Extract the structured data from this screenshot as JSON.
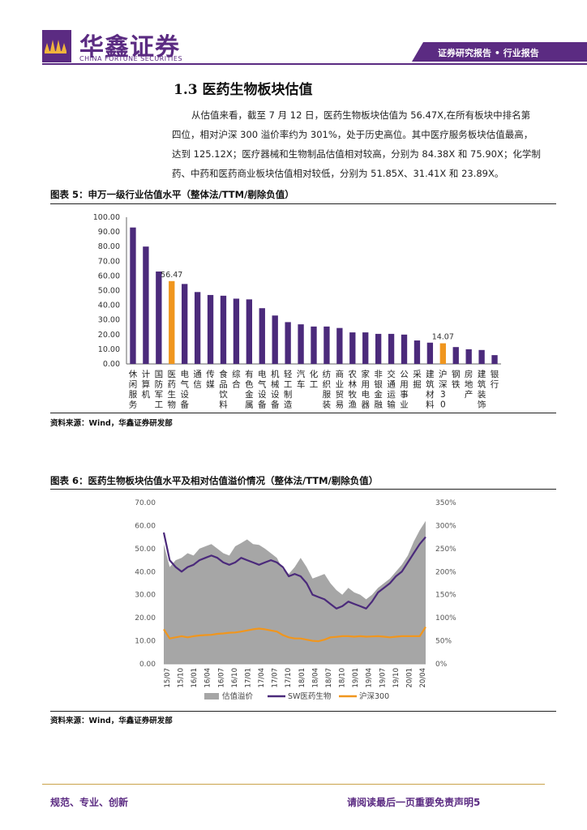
{
  "header": {
    "logo_cn": "华鑫证券",
    "logo_en": "CHINA FORTUNE SECURITIES",
    "report_type": "证券研究报告 • 行业报告"
  },
  "section": {
    "title": "1.3 医药生物板块估值",
    "paragraph_lines": [
      "从估值来看，截至 7 月 12 日，医药生物板块估值为 56.47X,在所有板块中排名第",
      "四位，相对沪深 300 溢价率约为 301%，处于历史高位。其中医疗服务板块估值最高，",
      "达到 125.12X；医疗器械和生物制品估值相对较高，分别为 84.38X 和 75.90X；化学制",
      "药、中药和医药商业板块估值相对较低，分别为 51.85X、31.41X 和 23.89X。"
    ]
  },
  "figure5": {
    "title": "图表 5：申万一级行业估值水平（整体法/TTM/剔除负值）",
    "source": "资料来源：Wind，华鑫证券研发部"
  },
  "figure6": {
    "title": "图表 6：医药生物板块估值水平及相对估值溢价情况（整体法/TTM/剔除负值）",
    "source": "资料来源：Wind，华鑫证券研发部"
  },
  "chart_data": [
    {
      "type": "bar",
      "ylim": [
        0,
        100
      ],
      "yticks": [
        "0.00",
        "10.00",
        "20.00",
        "30.00",
        "40.00",
        "50.00",
        "60.00",
        "70.00",
        "80.00",
        "90.00",
        "100.00"
      ],
      "categories": [
        "休闲服务",
        "计算机",
        "国防军工",
        "医药生物",
        "电气设备",
        "通信",
        "传媒",
        "食品饮料",
        "综合",
        "有色金属",
        "电气设备",
        "机械设备",
        "轻工制造",
        "汽车",
        "化工",
        "纺织服装",
        "商业贸易",
        "农林牧渔",
        "家用电器",
        "非银金融",
        "交通运输",
        "公用事业",
        "采掘",
        "建筑材料",
        "沪深300",
        "钢铁",
        "房地产",
        "建筑装饰",
        "银行"
      ],
      "values": [
        93.0,
        80.0,
        63.0,
        56.47,
        54.5,
        49.0,
        47.0,
        46.5,
        44.5,
        44.0,
        38.0,
        33.0,
        28.5,
        27.0,
        25.5,
        25.5,
        24.5,
        21.5,
        21.5,
        20.5,
        20.5,
        20.0,
        16.0,
        14.5,
        14.07,
        11.5,
        10.0,
        9.5,
        6.0
      ],
      "highlight_indices": [
        3,
        24
      ],
      "data_labels": {
        "3": "56.47",
        "24": "14.07"
      },
      "colors": {
        "default": "#4b2a7b",
        "highlight": "#f0961e"
      }
    },
    {
      "type": "line",
      "left_axis": {
        "ylim": [
          0,
          70
        ],
        "ticks": [
          "0.00",
          "10.00",
          "20.00",
          "30.00",
          "40.00",
          "50.00",
          "60.00",
          "70.00"
        ]
      },
      "right_axis": {
        "ylim": [
          0,
          350
        ],
        "ticks": [
          "0%",
          "50%",
          "100%",
          "150%",
          "200%",
          "250%",
          "300%",
          "350%"
        ]
      },
      "x_ticks": [
        "15/07",
        "15/10",
        "16/01",
        "16/04",
        "16/07",
        "16/10",
        "17/01",
        "17/04",
        "17/07",
        "17/10",
        "18/01",
        "18/04",
        "18/07",
        "18/10",
        "19/01",
        "19/04",
        "19/07",
        "19/10",
        "20/01",
        "20/04"
      ],
      "series": [
        {
          "name": "估值溢价",
          "axis": "right",
          "kind": "area",
          "color": "#a6a6a6",
          "values": [
            260,
            210,
            225,
            230,
            240,
            235,
            250,
            255,
            260,
            250,
            240,
            235,
            255,
            262,
            270,
            260,
            258,
            250,
            240,
            230,
            205,
            195,
            210,
            230,
            210,
            185,
            190,
            195,
            175,
            160,
            150,
            165,
            155,
            150,
            140,
            150,
            165,
            175,
            185,
            200,
            215,
            235,
            265,
            290,
            310
          ]
        },
        {
          "name": "SW医药生物",
          "axis": "left",
          "kind": "line",
          "color": "#4b2a7b",
          "values": [
            57,
            45,
            42,
            40,
            42,
            43,
            45,
            46,
            47,
            46,
            44,
            43,
            44,
            46,
            45,
            44,
            43,
            44,
            45,
            44,
            42,
            38,
            39,
            38,
            35,
            30,
            29,
            28,
            26,
            24,
            25,
            27,
            26,
            25,
            24,
            27,
            31,
            33,
            35,
            38,
            40,
            44,
            48,
            52,
            55
          ]
        },
        {
          "name": "沪深300",
          "axis": "left",
          "kind": "line",
          "color": "#f0961e",
          "values": [
            15,
            11,
            11.5,
            12,
            11.5,
            12,
            12.3,
            12.5,
            12.6,
            13,
            13.2,
            13.5,
            13.6,
            14,
            14.5,
            15,
            15.3,
            15,
            14.5,
            14,
            12.5,
            11.5,
            11,
            11,
            10.5,
            10,
            9.8,
            10.5,
            11.5,
            11.7,
            12,
            12,
            11.8,
            12,
            11.8,
            11.9,
            12,
            11.8,
            11.5,
            11.8,
            12,
            12,
            12,
            12,
            16
          ]
        }
      ]
    }
  ]
}
